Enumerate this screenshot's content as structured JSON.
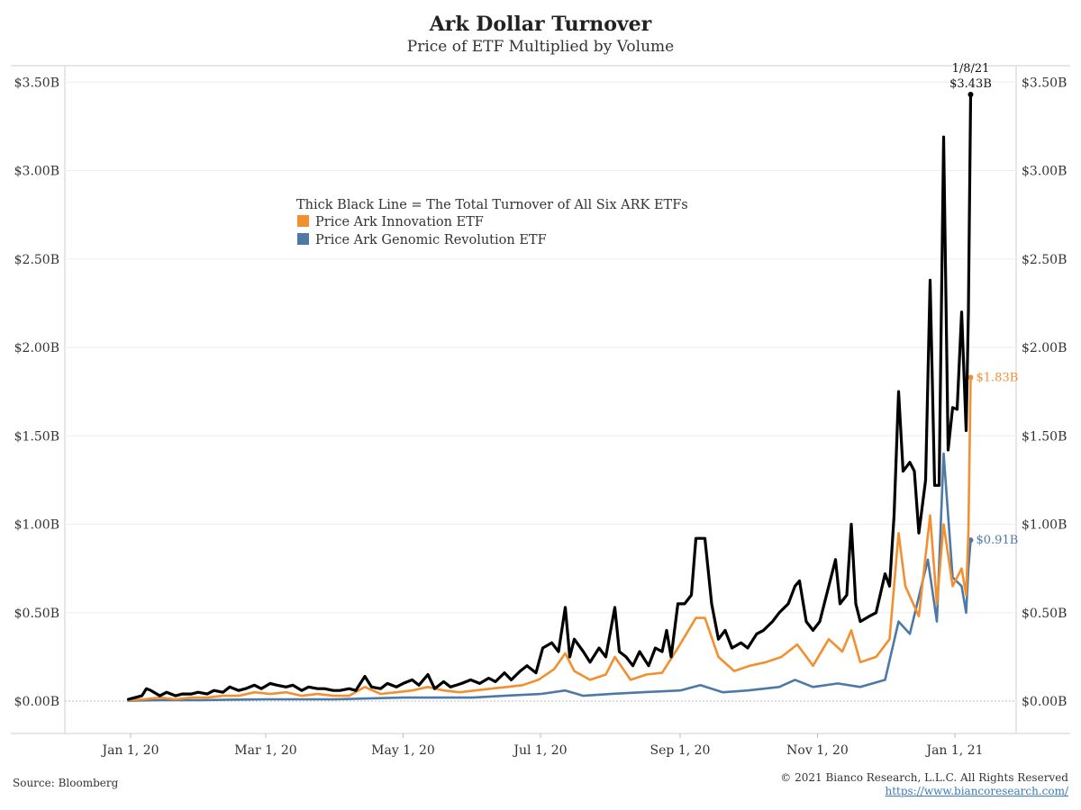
{
  "header": {
    "title": "Ark Dollar Turnover",
    "subtitle": "Price of ETF Multiplied by Volume"
  },
  "footer": {
    "source": "Source: Bloomberg",
    "copyright": "© 2021 Bianco Research, L.L.C. All Rights Reserved",
    "url": "https://www.biancoresearch.com/"
  },
  "chart_data": {
    "type": "line",
    "title": "Ark Dollar Turnover",
    "subtitle": "Price of ETF Multiplied by Volume",
    "y_unit": "billions USD",
    "ylim": [
      0,
      3.6
    ],
    "y_ticks": [
      0,
      0.5,
      1.0,
      1.5,
      2.0,
      2.5,
      3.0,
      3.5
    ],
    "y_tick_labels": [
      "$0.00B",
      "$0.50B",
      "$1.00B",
      "$1.50B",
      "$2.00B",
      "$2.50B",
      "$3.00B",
      "$3.50B"
    ],
    "x_ticks": [
      "2020-01-01",
      "2020-03-01",
      "2020-05-01",
      "2020-07-01",
      "2020-09-01",
      "2020-11-01",
      "2021-01-01"
    ],
    "x_tick_labels": [
      "Jan 1, 20",
      "Mar 1, 20",
      "May 1, 20",
      "Jul 1, 20",
      "Sep 1, 20",
      "Nov 1, 20",
      "Jan 1, 21"
    ],
    "xlim": [
      "2019-12-11",
      "2021-01-25"
    ],
    "grid": true,
    "legend": {
      "position": "upper-left",
      "header": "Thick Black Line = The Total Turnover of All Six ARK ETFs",
      "entries": [
        "Price Ark Innovation ETF",
        "Price Ark Genomic Revolution ETF"
      ]
    },
    "annotations": [
      {
        "series": "total",
        "date_label": "1/8/21",
        "value_label": "$3.43B"
      },
      {
        "series": "arkk",
        "value_label": "$1.83B"
      },
      {
        "series": "arkg",
        "value_label": "$0.91B"
      }
    ],
    "series": [
      {
        "key": "total",
        "color": "#000000",
        "points": [
          [
            "2019-12-31",
            0.01
          ],
          [
            "2020-01-03",
            0.02
          ],
          [
            "2020-01-06",
            0.03
          ],
          [
            "2020-01-08",
            0.07
          ],
          [
            "2020-01-10",
            0.06
          ],
          [
            "2020-01-14",
            0.03
          ],
          [
            "2020-01-17",
            0.05
          ],
          [
            "2020-01-21",
            0.03
          ],
          [
            "2020-01-24",
            0.04
          ],
          [
            "2020-01-28",
            0.04
          ],
          [
            "2020-01-31",
            0.05
          ],
          [
            "2020-02-04",
            0.04
          ],
          [
            "2020-02-07",
            0.06
          ],
          [
            "2020-02-11",
            0.05
          ],
          [
            "2020-02-14",
            0.08
          ],
          [
            "2020-02-18",
            0.06
          ],
          [
            "2020-02-21",
            0.07
          ],
          [
            "2020-02-25",
            0.09
          ],
          [
            "2020-02-28",
            0.07
          ],
          [
            "2020-03-03",
            0.1
          ],
          [
            "2020-03-06",
            0.09
          ],
          [
            "2020-03-10",
            0.08
          ],
          [
            "2020-03-13",
            0.09
          ],
          [
            "2020-03-17",
            0.06
          ],
          [
            "2020-03-20",
            0.08
          ],
          [
            "2020-03-24",
            0.07
          ],
          [
            "2020-03-27",
            0.07
          ],
          [
            "2020-03-31",
            0.06
          ],
          [
            "2020-04-03",
            0.06
          ],
          [
            "2020-04-07",
            0.07
          ],
          [
            "2020-04-10",
            0.06
          ],
          [
            "2020-04-14",
            0.14
          ],
          [
            "2020-04-17",
            0.08
          ],
          [
            "2020-04-21",
            0.07
          ],
          [
            "2020-04-24",
            0.1
          ],
          [
            "2020-04-28",
            0.08
          ],
          [
            "2020-05-01",
            0.1
          ],
          [
            "2020-05-05",
            0.12
          ],
          [
            "2020-05-08",
            0.09
          ],
          [
            "2020-05-12",
            0.15
          ],
          [
            "2020-05-15",
            0.07
          ],
          [
            "2020-05-19",
            0.11
          ],
          [
            "2020-05-22",
            0.08
          ],
          [
            "2020-05-27",
            0.1
          ],
          [
            "2020-05-31",
            0.12
          ],
          [
            "2020-06-04",
            0.1
          ],
          [
            "2020-06-08",
            0.13
          ],
          [
            "2020-06-11",
            0.11
          ],
          [
            "2020-06-15",
            0.16
          ],
          [
            "2020-06-18",
            0.12
          ],
          [
            "2020-06-22",
            0.17
          ],
          [
            "2020-06-25",
            0.2
          ],
          [
            "2020-06-29",
            0.16
          ],
          [
            "2020-07-02",
            0.3
          ],
          [
            "2020-07-06",
            0.33
          ],
          [
            "2020-07-09",
            0.28
          ],
          [
            "2020-07-12",
            0.53
          ],
          [
            "2020-07-14",
            0.25
          ],
          [
            "2020-07-16",
            0.35
          ],
          [
            "2020-07-20",
            0.28
          ],
          [
            "2020-07-23",
            0.22
          ],
          [
            "2020-07-27",
            0.3
          ],
          [
            "2020-07-30",
            0.25
          ],
          [
            "2020-08-03",
            0.53
          ],
          [
            "2020-08-05",
            0.28
          ],
          [
            "2020-08-08",
            0.25
          ],
          [
            "2020-08-11",
            0.2
          ],
          [
            "2020-08-14",
            0.28
          ],
          [
            "2020-08-18",
            0.2
          ],
          [
            "2020-08-21",
            0.3
          ],
          [
            "2020-08-24",
            0.28
          ],
          [
            "2020-08-26",
            0.4
          ],
          [
            "2020-08-28",
            0.25
          ],
          [
            "2020-08-31",
            0.55
          ],
          [
            "2020-09-03",
            0.55
          ],
          [
            "2020-09-06",
            0.6
          ],
          [
            "2020-09-08",
            0.92
          ],
          [
            "2020-09-12",
            0.92
          ],
          [
            "2020-09-15",
            0.55
          ],
          [
            "2020-09-18",
            0.35
          ],
          [
            "2020-09-21",
            0.4
          ],
          [
            "2020-09-24",
            0.3
          ],
          [
            "2020-09-28",
            0.33
          ],
          [
            "2020-10-01",
            0.3
          ],
          [
            "2020-10-05",
            0.38
          ],
          [
            "2020-10-08",
            0.4
          ],
          [
            "2020-10-12",
            0.45
          ],
          [
            "2020-10-15",
            0.5
          ],
          [
            "2020-10-19",
            0.55
          ],
          [
            "2020-10-22",
            0.65
          ],
          [
            "2020-10-24",
            0.68
          ],
          [
            "2020-10-27",
            0.45
          ],
          [
            "2020-10-30",
            0.4
          ],
          [
            "2020-11-02",
            0.45
          ],
          [
            "2020-11-04",
            0.55
          ],
          [
            "2020-11-06",
            0.65
          ],
          [
            "2020-11-09",
            0.8
          ],
          [
            "2020-11-11",
            0.55
          ],
          [
            "2020-11-14",
            0.6
          ],
          [
            "2020-11-16",
            1.0
          ],
          [
            "2020-11-18",
            0.55
          ],
          [
            "2020-11-20",
            0.45
          ],
          [
            "2020-11-24",
            0.48
          ],
          [
            "2020-11-27",
            0.5
          ],
          [
            "2020-12-01",
            0.72
          ],
          [
            "2020-12-03",
            0.65
          ],
          [
            "2020-12-05",
            1.05
          ],
          [
            "2020-12-07",
            1.75
          ],
          [
            "2020-12-09",
            1.3
          ],
          [
            "2020-12-12",
            1.35
          ],
          [
            "2020-12-14",
            1.3
          ],
          [
            "2020-12-16",
            0.95
          ],
          [
            "2020-12-19",
            1.25
          ],
          [
            "2020-12-21",
            2.38
          ],
          [
            "2020-12-23",
            1.22
          ],
          [
            "2020-12-25",
            1.22
          ],
          [
            "2020-12-27",
            3.19
          ],
          [
            "2020-12-29",
            1.42
          ],
          [
            "2020-12-31",
            1.66
          ],
          [
            "2021-01-02",
            1.65
          ],
          [
            "2021-01-04",
            2.2
          ],
          [
            "2021-01-06",
            1.53
          ],
          [
            "2021-01-07",
            2.2
          ],
          [
            "2021-01-08",
            3.43
          ]
        ]
      },
      {
        "key": "arkk",
        "name": "Price Ark Innovation ETF",
        "color": "#f2902f",
        "points": [
          [
            "2019-12-31",
            0.005
          ],
          [
            "2020-01-07",
            0.01
          ],
          [
            "2020-01-14",
            0.02
          ],
          [
            "2020-01-21",
            0.01
          ],
          [
            "2020-01-28",
            0.02
          ],
          [
            "2020-02-04",
            0.02
          ],
          [
            "2020-02-11",
            0.03
          ],
          [
            "2020-02-18",
            0.03
          ],
          [
            "2020-02-25",
            0.05
          ],
          [
            "2020-03-03",
            0.04
          ],
          [
            "2020-03-10",
            0.05
          ],
          [
            "2020-03-17",
            0.03
          ],
          [
            "2020-03-24",
            0.04
          ],
          [
            "2020-03-31",
            0.03
          ],
          [
            "2020-04-07",
            0.03
          ],
          [
            "2020-04-14",
            0.08
          ],
          [
            "2020-04-21",
            0.04
          ],
          [
            "2020-04-28",
            0.05
          ],
          [
            "2020-05-05",
            0.06
          ],
          [
            "2020-05-12",
            0.08
          ],
          [
            "2020-05-19",
            0.06
          ],
          [
            "2020-05-26",
            0.05
          ],
          [
            "2020-06-02",
            0.06
          ],
          [
            "2020-06-09",
            0.07
          ],
          [
            "2020-06-16",
            0.08
          ],
          [
            "2020-06-23",
            0.09
          ],
          [
            "2020-06-30",
            0.12
          ],
          [
            "2020-07-07",
            0.18
          ],
          [
            "2020-07-12",
            0.27
          ],
          [
            "2020-07-16",
            0.17
          ],
          [
            "2020-07-23",
            0.12
          ],
          [
            "2020-07-30",
            0.15
          ],
          [
            "2020-08-03",
            0.25
          ],
          [
            "2020-08-10",
            0.12
          ],
          [
            "2020-08-17",
            0.15
          ],
          [
            "2020-08-24",
            0.16
          ],
          [
            "2020-08-31",
            0.3
          ],
          [
            "2020-09-08",
            0.47
          ],
          [
            "2020-09-12",
            0.47
          ],
          [
            "2020-09-18",
            0.25
          ],
          [
            "2020-09-25",
            0.17
          ],
          [
            "2020-10-02",
            0.2
          ],
          [
            "2020-10-09",
            0.22
          ],
          [
            "2020-10-16",
            0.25
          ],
          [
            "2020-10-23",
            0.32
          ],
          [
            "2020-10-30",
            0.2
          ],
          [
            "2020-11-06",
            0.35
          ],
          [
            "2020-11-12",
            0.28
          ],
          [
            "2020-11-16",
            0.4
          ],
          [
            "2020-11-20",
            0.22
          ],
          [
            "2020-11-27",
            0.25
          ],
          [
            "2020-12-03",
            0.35
          ],
          [
            "2020-12-07",
            0.95
          ],
          [
            "2020-12-10",
            0.65
          ],
          [
            "2020-12-16",
            0.48
          ],
          [
            "2020-12-21",
            1.05
          ],
          [
            "2020-12-24",
            0.55
          ],
          [
            "2020-12-27",
            1.0
          ],
          [
            "2020-12-31",
            0.65
          ],
          [
            "2021-01-04",
            0.75
          ],
          [
            "2021-01-06",
            0.6
          ],
          [
            "2021-01-07",
            0.95
          ],
          [
            "2021-01-08",
            1.83
          ]
        ]
      },
      {
        "key": "arkg",
        "name": "Price Ark Genomic Revolution ETF",
        "color": "#4e79a7",
        "points": [
          [
            "2019-12-31",
            0.002
          ],
          [
            "2020-01-15",
            0.005
          ],
          [
            "2020-02-01",
            0.005
          ],
          [
            "2020-02-15",
            0.008
          ],
          [
            "2020-03-01",
            0.01
          ],
          [
            "2020-03-15",
            0.01
          ],
          [
            "2020-04-01",
            0.01
          ],
          [
            "2020-04-15",
            0.015
          ],
          [
            "2020-05-01",
            0.02
          ],
          [
            "2020-05-15",
            0.02
          ],
          [
            "2020-06-01",
            0.02
          ],
          [
            "2020-06-15",
            0.03
          ],
          [
            "2020-07-01",
            0.04
          ],
          [
            "2020-07-12",
            0.06
          ],
          [
            "2020-07-20",
            0.03
          ],
          [
            "2020-08-01",
            0.04
          ],
          [
            "2020-08-15",
            0.05
          ],
          [
            "2020-09-01",
            0.06
          ],
          [
            "2020-09-10",
            0.09
          ],
          [
            "2020-09-20",
            0.05
          ],
          [
            "2020-10-01",
            0.06
          ],
          [
            "2020-10-15",
            0.08
          ],
          [
            "2020-10-22",
            0.12
          ],
          [
            "2020-10-30",
            0.08
          ],
          [
            "2020-11-10",
            0.1
          ],
          [
            "2020-11-20",
            0.08
          ],
          [
            "2020-12-01",
            0.12
          ],
          [
            "2020-12-07",
            0.45
          ],
          [
            "2020-12-12",
            0.38
          ],
          [
            "2020-12-20",
            0.8
          ],
          [
            "2020-12-24",
            0.45
          ],
          [
            "2020-12-27",
            1.4
          ],
          [
            "2020-12-31",
            0.7
          ],
          [
            "2021-01-04",
            0.65
          ],
          [
            "2021-01-06",
            0.5
          ],
          [
            "2021-01-07",
            0.75
          ],
          [
            "2021-01-08",
            0.91
          ]
        ]
      }
    ]
  }
}
